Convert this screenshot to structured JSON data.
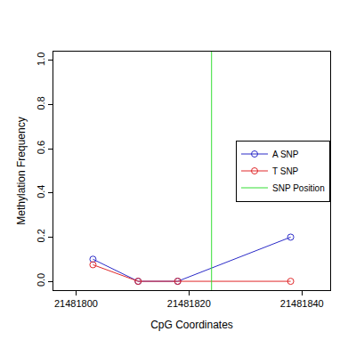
{
  "chart_data": {
    "type": "line",
    "x_label": "CpG Coordinates",
    "y_label": "Methylation Frequency",
    "series": [
      {
        "name": "A SNP",
        "color": "#2b2bc8",
        "marker": "circle-open",
        "line_style": "solid",
        "x": [
          21481803,
          21481811,
          21481818,
          21481838
        ],
        "values": [
          0.1,
          0,
          0,
          0.2
        ]
      },
      {
        "name": "T SNP",
        "color": "#e0282a",
        "marker": "circle-open",
        "line_style": "solid",
        "x": [
          21481803,
          21481811,
          21481818,
          21481838
        ],
        "values": [
          0.075,
          0,
          0,
          0
        ]
      },
      {
        "name": "SNP Position",
        "color": "#33dd33",
        "type": "vline",
        "line_style": "solid",
        "x": [
          21481824
        ]
      }
    ],
    "xlim": [
      21481796,
      21481845
    ],
    "xticks": [
      21481800,
      21481820,
      21481840
    ],
    "ylim": [
      -0.04,
      1.04
    ],
    "yticks": [
      {
        "value": 0,
        "label": "0.0"
      },
      {
        "value": 0.2,
        "label": "0.2"
      },
      {
        "value": 0.4,
        "label": "0.4"
      },
      {
        "value": 0.6,
        "label": "0.6"
      },
      {
        "value": 0.8,
        "label": "0.8"
      },
      {
        "value": 1,
        "label": "1.0"
      }
    ],
    "grid": false,
    "legend": "right"
  }
}
